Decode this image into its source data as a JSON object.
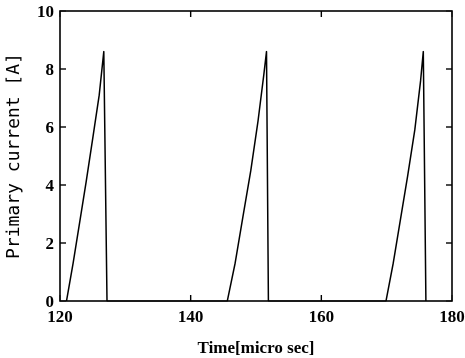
{
  "chart_data": {
    "type": "line",
    "xlabel": "Time[micro sec]",
    "ylabel": "Primary current [A]",
    "xlim": [
      120,
      180
    ],
    "ylim": [
      0,
      10
    ],
    "x_ticks": [
      120,
      140,
      160,
      180
    ],
    "y_ticks": [
      0,
      2,
      4,
      6,
      8,
      10
    ],
    "grid": false,
    "series": [
      {
        "values_xy": [
          [
            121.0,
            0
          ],
          [
            122.0,
            1.3
          ],
          [
            123.0,
            2.7
          ],
          [
            124.0,
            4.1
          ],
          [
            125.0,
            5.6
          ],
          [
            126.0,
            7.1
          ],
          [
            126.7,
            8.6
          ],
          [
            127.2,
            0
          ],
          [
            145.6,
            0
          ],
          [
            146.8,
            1.3
          ],
          [
            148.0,
            2.9
          ],
          [
            149.2,
            4.5
          ],
          [
            150.3,
            6.2
          ],
          [
            151.2,
            7.8
          ],
          [
            151.6,
            8.6
          ],
          [
            151.9,
            0
          ],
          [
            169.9,
            0
          ],
          [
            171.0,
            1.3
          ],
          [
            172.1,
            2.8
          ],
          [
            173.2,
            4.3
          ],
          [
            174.3,
            5.9
          ],
          [
            175.2,
            7.6
          ],
          [
            175.6,
            8.6
          ],
          [
            176.0,
            0
          ]
        ]
      }
    ]
  }
}
